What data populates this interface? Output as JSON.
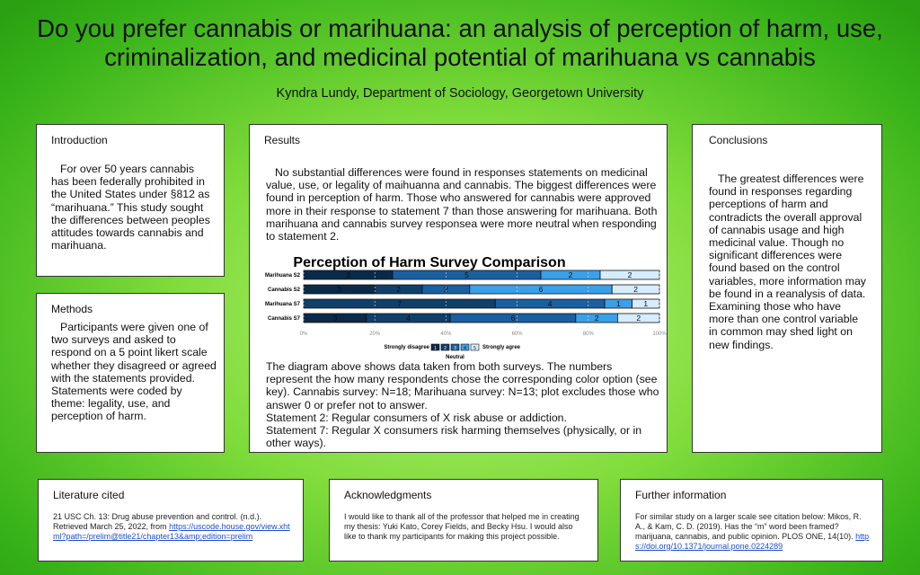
{
  "title_line1": "Do you prefer cannabis or marihuana: an analysis of perception of harm, use,",
  "title_line2": "criminalization, and medicinal potential of marihuana vs cannabis",
  "author": "Kyndra Lundy, Department of Sociology,  Georgetown University",
  "introduction": {
    "heading": "Introduction",
    "text": "For over 50 years cannabis has been federally prohibited in the United States under §812 as “marihuana.” This study sought the differences between peoples attitudes towards cannabis and marihuana."
  },
  "methods": {
    "heading": "Methods",
    "text": "Participants were given one of two surveys and asked to respond on a 5 point likert scale whether they disagreed or agreed with the statements provided. Statements  were coded by theme: legality, use, and perception of harm."
  },
  "results": {
    "heading": "Results",
    "text": "No substantial differences were found in responses statements on medicinal value, use, or legality of maihuanna and cannabis. The biggest differences were found in perception of harm. Those who answered for cannabis were approved more  in their response to statement 7 than those answering for marihuana. Both marihuana and cannabis survey responsea were more neutral when responding to statement 2.",
    "caption": "The diagram above shows data taken from both surveys. The numbers represent the how many respondents chose the corresponding color option (see key). Cannabis survey: N=18; Marihuana survey: N=13; plot  excludes those who answer 0 or prefer not to answer.",
    "statement2": "Statement 2: Regular consumers of X risk abuse or addiction.",
    "statement7": "Statement 7: Regular X consumers risk harming themselves (physically, or in other ways)."
  },
  "conclusions": {
    "heading": "Conclusions",
    "text": "The greatest differences were found in responses regarding perceptions of harm and contradicts the overall approval of cannabis usage and high medicinal value. Though no significant differences were found based on the control variables, more information may be found in a reanalysis of data. Examining those who have more than one control variable in common may shed light on new findings."
  },
  "literature": {
    "heading": "Literature cited",
    "text": "21 USC Ch. 13: Drug abuse prevention and control. (n.d.). Retrieved March 25, 2022, from",
    "link": "https://uscode.house.gov/view.xhtml?path=/prelim@title21/chapter13&amp;edition=prelim"
  },
  "acknowledgments": {
    "heading": "Acknowledgments",
    "text": "I would like to thank all of the professor that helped me in creating my thesis: Yuki Kato, Corey Fields, and Becky Hsu. I would also like to thank my participants for making this project possible."
  },
  "further": {
    "heading": "Further information",
    "text": "For similar study on a larger scale see citation below: Mikos, R. A., & Kam, C. D. (2019). Has the “m” word been framed? marijuana, cannabis, and public opinion. PLOS ONE, 14(10).",
    "link": "https://doi.org/10.1371/journal.pone.0224289"
  },
  "chart_data": {
    "type": "bar",
    "stacked": true,
    "percent": true,
    "title": "Perception of Harm Survey Comparison",
    "categories": [
      "Marihuana S2",
      "Cannabis S2",
      "Marihuana S7",
      "Cannabis S7"
    ],
    "series": [
      {
        "name": "1",
        "color": "#0a2a4a",
        "values": [
          3,
          3,
          0,
          3
        ]
      },
      {
        "name": "2",
        "color": "#103f6a",
        "values": [
          0,
          2,
          7,
          4
        ]
      },
      {
        "name": "3",
        "color": "#1a5fa0",
        "values": [
          5,
          2,
          4,
          6
        ]
      },
      {
        "name": "4",
        "color": "#3aa0e8",
        "values": [
          2,
          6,
          1,
          2
        ]
      },
      {
        "name": "5",
        "color": "#d6ecff",
        "values": [
          2,
          2,
          1,
          2
        ]
      }
    ],
    "data_labels": [
      [
        "3",
        "",
        "5",
        "2",
        "2"
      ],
      [
        "3",
        "2",
        "2",
        "6",
        "2"
      ],
      [
        "",
        "7",
        "4",
        "1",
        "1"
      ],
      [
        "3",
        "4",
        "6",
        "2",
        "2"
      ]
    ],
    "x_ticks": [
      "0%",
      "20%",
      "40%",
      "60%",
      "80%",
      "100%"
    ],
    "xlim": [
      0,
      100
    ],
    "legend": {
      "left": "Strongly disagree",
      "right": "Strongly agree",
      "middle": "Neutral",
      "keys": [
        "1",
        "2",
        "3",
        "4",
        "5"
      ],
      "placement": "bottom"
    }
  }
}
